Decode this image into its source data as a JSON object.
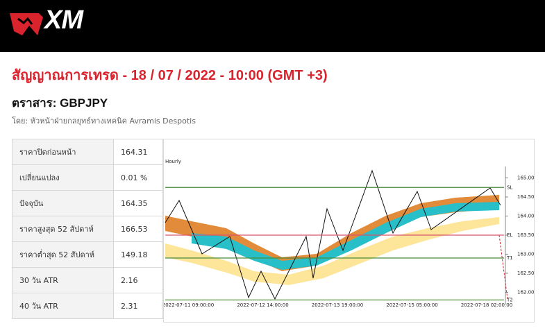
{
  "header": {
    "logo": "XM"
  },
  "title": "สัญญาณการเทรด - 18 / 07 / 2022 - 10:00 (GMT +3)",
  "instrument": "ตราสาร: GBPJPY",
  "byline": "โดย: หัวหน้าฝ่ายกลยุทธ์ทางเทคนิค Avramis Despotis",
  "table": {
    "rows": [
      [
        "ราคาปิดก่อนหน้า",
        "164.31"
      ],
      [
        "เปลี่ยนแปลง",
        "0.01 %"
      ],
      [
        "ปัจจุบัน",
        "164.35"
      ],
      [
        "ราคาสูงสุด 52 สัปดาห์",
        "166.53"
      ],
      [
        "ราคาต่ำสุด 52 สัปดาห์",
        "149.18"
      ],
      [
        "30 วัน ATR",
        "2.16"
      ],
      [
        "40 วัน ATR",
        "2.31"
      ]
    ]
  },
  "chart": {
    "label": "Hourly",
    "ylim": [
      161.7,
      165.3
    ],
    "yticks": [
      {
        "value": 165,
        "label": "165.00"
      },
      {
        "value": 164.5,
        "label": "164.50"
      },
      {
        "value": 164,
        "label": "164.00"
      },
      {
        "value": 163.5,
        "label": "163.50"
      },
      {
        "value": 163,
        "label": "163.00"
      },
      {
        "value": 162.5,
        "label": "162.50"
      },
      {
        "value": 162,
        "label": "162.00"
      }
    ],
    "xlabels": [
      "2022-07-11 09:00:00",
      "2022-07-12 14:00:00",
      "2022-07-13 19:00:00",
      "2022-07-15 05:00:00",
      "2022-07-18 02:00:00"
    ],
    "levels": [
      {
        "name": "SL",
        "value": 164.75,
        "color": "#4a8a3a"
      },
      {
        "name": "EL",
        "value": 163.5,
        "color": "#d9536a"
      },
      {
        "name": "T1",
        "value": 162.9,
        "color": "#4a8a3a"
      },
      {
        "name": "T2",
        "value": 161.8,
        "color": "#4a8a3a"
      }
    ]
  }
}
